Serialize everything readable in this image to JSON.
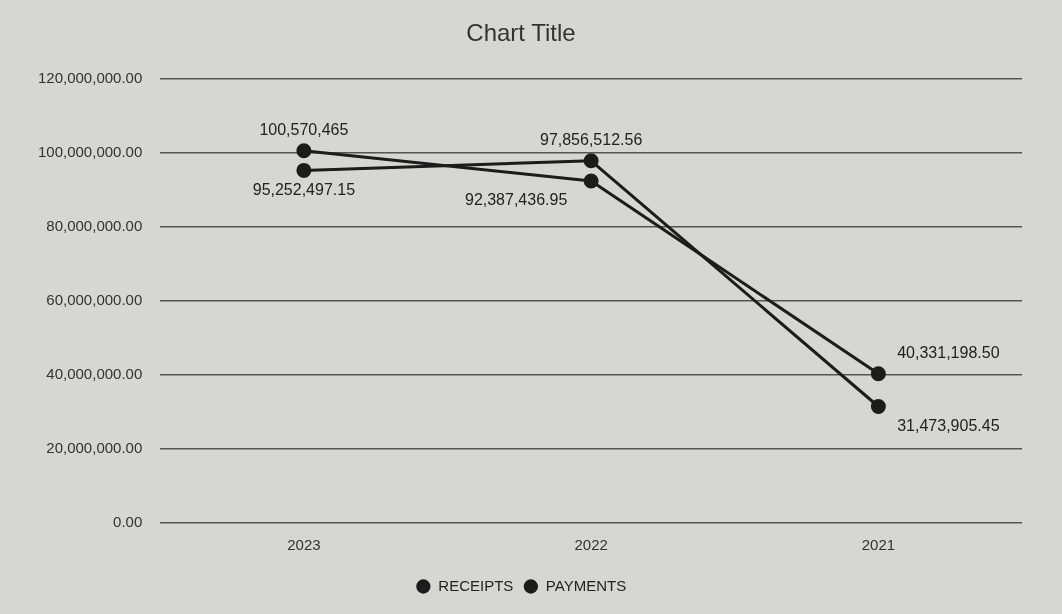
{
  "chart_data": {
    "type": "line",
    "title": "Chart Title",
    "categories": [
      "2023",
      "2022",
      "2021"
    ],
    "series": [
      {
        "name": "RECEIPTS",
        "color": "#1c1c1c",
        "values": [
          100570465,
          92387436.95,
          40331198.5
        ],
        "value_labels": [
          "100,570,465",
          "92,387,436.95",
          "40,331,198.50"
        ]
      },
      {
        "name": "PAYMENTS",
        "color": "#1c1c1c",
        "values": [
          95252497.15,
          97856512.56,
          31473905.45
        ],
        "value_labels": [
          "95,252,497.15",
          "97,856,512.56",
          "31,473,905.45"
        ]
      }
    ],
    "ylim": [
      0,
      120000000
    ],
    "yticks": [
      {
        "value": 0,
        "label": "0.00"
      },
      {
        "value": 20000000,
        "label": "20,000,000.00"
      },
      {
        "value": 40000000,
        "label": "40,000,000.00"
      },
      {
        "value": 60000000,
        "label": "60,000,000.00"
      },
      {
        "value": 80000000,
        "label": "80,000,000.00"
      },
      {
        "value": 100000000,
        "label": "100,000,000.00"
      },
      {
        "value": 120000000,
        "label": "120,000,000.00"
      }
    ],
    "grid": "y",
    "legend": "bottom",
    "marker": "circle",
    "line_style": "solid"
  }
}
